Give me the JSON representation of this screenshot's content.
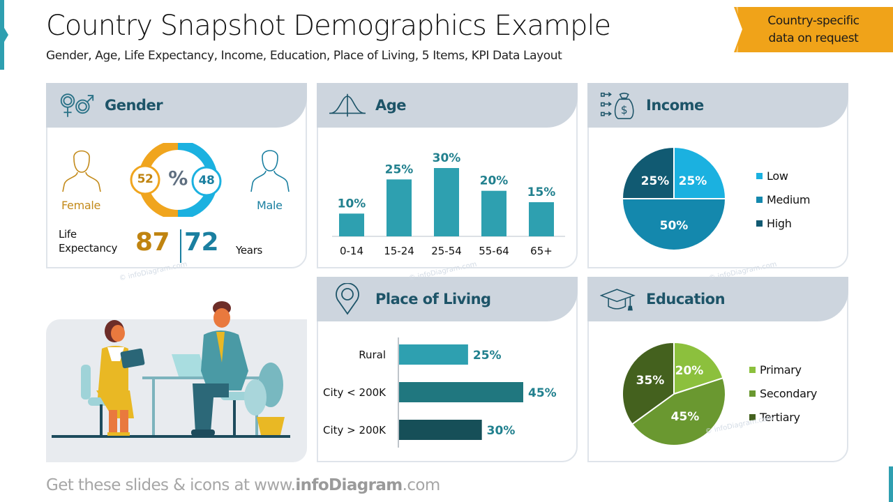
{
  "header": {
    "title": "Country Snapshot Demographics Example",
    "subtitle": "Gender, Age, Life Expectancy, Income, Education, Place of Living, 5 Items, KPI Data Layout",
    "banner_line1": "Country-specific",
    "banner_line2": "data on request"
  },
  "gender": {
    "title": "Gender",
    "female_label": "Female",
    "male_label": "Male",
    "female_pct": "52",
    "male_pct": "48",
    "center_symbol": "%",
    "life_expectancy_line1": "Life",
    "life_expectancy_line2": "Expectancy",
    "female_life": "87",
    "male_life": "72",
    "years_label": "Years",
    "colors": {
      "female": "#f0a51e",
      "male": "#1bb1e0",
      "female_text": "#c08410",
      "male_text": "#1a7fa0"
    }
  },
  "age": {
    "title": "Age"
  },
  "income": {
    "title": "Income"
  },
  "place": {
    "title": "Place of Living"
  },
  "education": {
    "title": "Education"
  },
  "footer": {
    "prefix": "Get these slides & icons at www.",
    "brand": "infoDiagram",
    "suffix": ".com"
  },
  "watermark": "© infoDiagram.com",
  "chart_data": [
    {
      "type": "bar",
      "title": "Age",
      "categories": [
        "0-14",
        "15-24",
        "25-54",
        "55-64",
        "65+"
      ],
      "values": [
        10,
        25,
        30,
        20,
        15
      ],
      "labels": [
        "10%",
        "25%",
        "30%",
        "20%",
        "15%"
      ],
      "ylabel": "",
      "xlabel": "",
      "ylim": [
        0,
        30
      ],
      "color": "#2ea0b0"
    },
    {
      "type": "pie",
      "title": "Income",
      "categories": [
        "Low",
        "Medium",
        "High"
      ],
      "values": [
        25,
        50,
        25
      ],
      "labels": [
        "25%",
        "50%",
        "25%"
      ],
      "colors": [
        "#1bb1e0",
        "#1488ad",
        "#115a72"
      ],
      "legend_position": "right"
    },
    {
      "type": "bar",
      "orientation": "horizontal",
      "title": "Place of Living",
      "categories": [
        "Rural",
        "City < 200K",
        "City > 200K"
      ],
      "values": [
        25,
        45,
        30
      ],
      "labels": [
        "25%",
        "45%",
        "30%"
      ],
      "colors": [
        "#2ea0b0",
        "#20777f",
        "#164f58"
      ]
    },
    {
      "type": "pie",
      "title": "Education",
      "categories": [
        "Primary",
        "Secondary",
        "Tertiary"
      ],
      "values": [
        20,
        45,
        35
      ],
      "labels": [
        "20%",
        "45%",
        "35%"
      ],
      "colors": [
        "#8cc03d",
        "#6a9830",
        "#44611e"
      ],
      "legend_position": "right"
    },
    {
      "type": "pie",
      "title": "Gender",
      "categories": [
        "Female",
        "Male"
      ],
      "values": [
        52,
        48
      ],
      "colors": [
        "#f0a51e",
        "#1bb1e0"
      ]
    }
  ]
}
